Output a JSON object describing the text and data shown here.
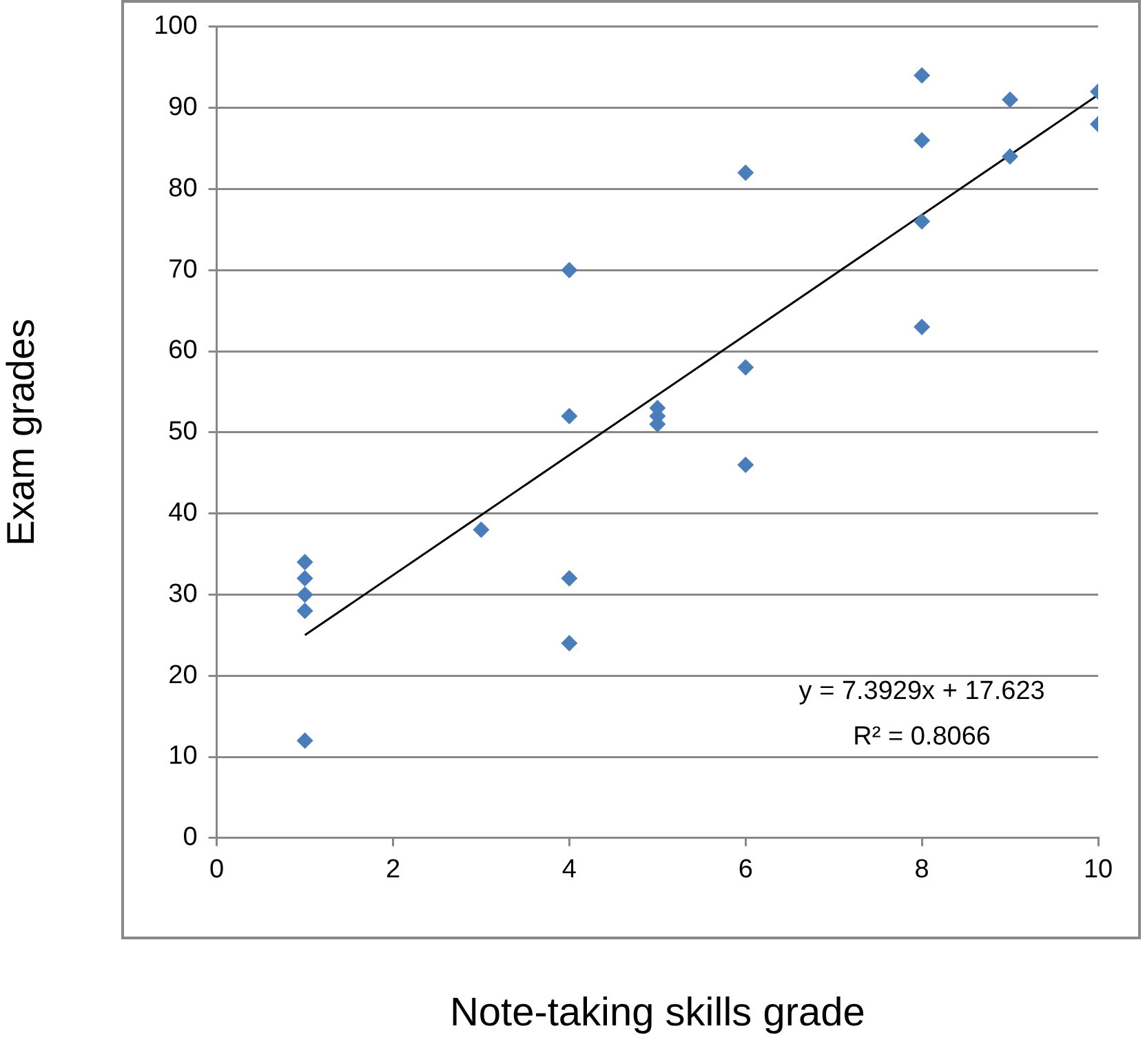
{
  "chart_data": {
    "type": "scatter",
    "xlabel": "Note-taking skills grade",
    "ylabel": "Exam grades",
    "xlim": [
      0,
      10
    ],
    "xticks": [
      0,
      2,
      4,
      6,
      8,
      10
    ],
    "ylim": [
      0,
      100
    ],
    "yticks": [
      0,
      10,
      20,
      30,
      40,
      50,
      60,
      70,
      80,
      90,
      100
    ],
    "grid": "y",
    "marker": "diamond",
    "series": [
      {
        "color": "#4a7ebb",
        "x": [
          1,
          1,
          1,
          1,
          1,
          3,
          4,
          4,
          4,
          4,
          5,
          5,
          5,
          6,
          6,
          6,
          8,
          8,
          8,
          8,
          9,
          9,
          10,
          10
        ],
        "values": [
          34,
          32,
          30,
          28,
          12,
          38,
          70,
          52,
          32,
          24,
          53,
          52,
          51,
          82,
          58,
          46,
          94,
          86,
          76,
          63,
          91,
          84,
          92,
          88
        ]
      },
      {
        "type": "line",
        "color": "#000000",
        "marker": "none",
        "x": [
          1,
          10
        ],
        "values": [
          25.0,
          91.6
        ]
      }
    ],
    "annotations": [
      "y = 7.3929x + 17.623",
      "R² = 0.8066"
    ]
  }
}
